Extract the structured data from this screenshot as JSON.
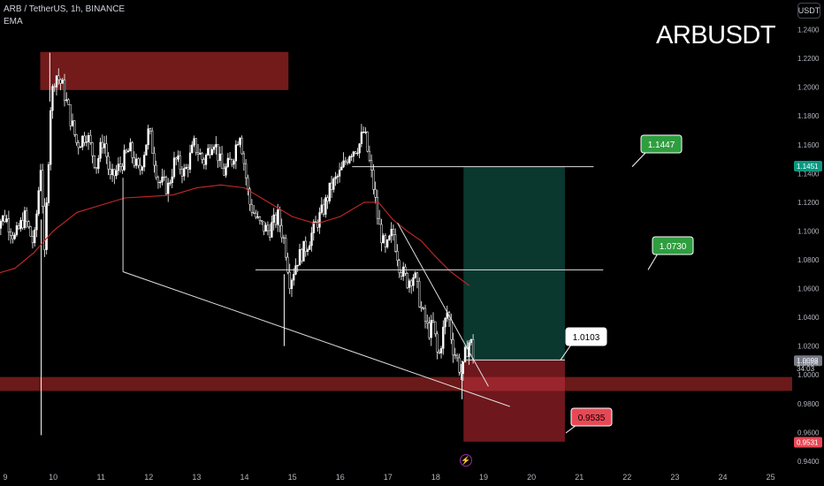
{
  "header": {
    "symbol_line": "ARB / TetherUS, 1h, BINANCE",
    "indicator": "EMA"
  },
  "watermark": "ARBUSDT",
  "currency_button": "USDT",
  "replay_icon": "lightning-bolt-icon",
  "colors": {
    "background": "#000000",
    "candle": "#ffffff",
    "ema": "#c62828",
    "supply_zone": "#7f1d1d",
    "profit_zone": "#0b3d33",
    "loss_zone": "#7a1a1f",
    "tp_label": "#2e9e3f",
    "sl_label": "#e84855",
    "current_price_tag": "#089981",
    "last_price_tag": "#787b86"
  },
  "chart_data": {
    "type": "candlestick",
    "title": "ARBUSDT",
    "y_axis": {
      "ylim": [
        0.935,
        1.252
      ],
      "ticks": [
        "1.2400",
        "1.2200",
        "1.2000",
        "1.1800",
        "1.1600",
        "1.1400",
        "1.1200",
        "1.1000",
        "1.0800",
        "1.0600",
        "1.0400",
        "1.0200",
        "1.0000",
        "0.9800",
        "0.9600",
        "0.9400"
      ],
      "tick_values": [
        1.24,
        1.22,
        1.2,
        1.18,
        1.16,
        1.14,
        1.12,
        1.1,
        1.08,
        1.06,
        1.04,
        1.02,
        1.0,
        0.98,
        0.96,
        0.94
      ]
    },
    "x_axis": {
      "ticks": [
        "9",
        "10",
        "11",
        "12",
        "13",
        "14",
        "15",
        "16",
        "17",
        "18",
        "19",
        "20",
        "21",
        "22",
        "23",
        "24",
        "25"
      ],
      "tick_days": [
        9,
        10,
        11,
        12,
        13,
        14,
        15,
        16,
        17,
        18,
        19,
        20,
        21,
        22,
        23,
        24,
        25
      ]
    },
    "price_tags": [
      {
        "label": "1.1451",
        "value": 1.1451,
        "kind": "tp"
      },
      {
        "label": "1.0098",
        "value": 1.0098,
        "kind": "last"
      },
      {
        "label": "1.0084",
        "value": 1.0084,
        "kind": "plain"
      },
      {
        "label": "34:03",
        "value": 1.0044,
        "kind": "plain"
      },
      {
        "label": "0.9531",
        "value": 0.9531,
        "kind": "sl"
      }
    ],
    "annotations": [
      {
        "label": "1.1447",
        "value": 1.1447,
        "kind": "tp"
      },
      {
        "label": "1.0730",
        "value": 1.073,
        "kind": "tp"
      },
      {
        "label": "1.0103",
        "value": 1.0103,
        "kind": "entry"
      },
      {
        "label": "0.9535",
        "value": 0.9535,
        "kind": "sl"
      }
    ],
    "zones": [
      {
        "name": "supply-zone",
        "day_from": 9.73,
        "day_to": 14.92,
        "top": 1.2245,
        "bottom": 1.198
      },
      {
        "name": "demand-zone",
        "day_from": 8.8,
        "day_to": 25.5,
        "top": 0.9985,
        "bottom": 0.9888
      },
      {
        "name": "profit-zone",
        "day_from": 18.58,
        "day_to": 20.7,
        "top": 1.1447,
        "bottom": 1.0103
      },
      {
        "name": "loss-zone",
        "day_from": 18.58,
        "day_to": 20.7,
        "top": 1.0103,
        "bottom": 0.9535
      }
    ],
    "levels": [
      {
        "name": "tp1-line",
        "day_from": 16.25,
        "day_to": 21.3,
        "value": 1.1447
      },
      {
        "name": "tp2-line",
        "day_from": 14.23,
        "day_to": 21.5,
        "value": 1.073
      },
      {
        "name": "entry-line",
        "day_from": 18.58,
        "day_to": 20.7,
        "value": 1.0103
      }
    ],
    "trendlines": [
      {
        "name": "lower-wedge-line",
        "from": [
          11.46,
          1.0717
        ],
        "to": [
          19.55,
          0.978
        ]
      },
      {
        "name": "upper-wedge-line",
        "from": [
          17.2,
          1.1056
        ],
        "to": [
          19.1,
          0.992
        ]
      }
    ],
    "verticals": [
      {
        "name": "left-range-line",
        "day": 11.46,
        "top": 1.137,
        "bottom": 1.0717
      }
    ],
    "price_path": [
      [
        8.78,
        1.105
      ],
      [
        9.0,
        1.11
      ],
      [
        9.2,
        1.095
      ],
      [
        9.4,
        1.11
      ],
      [
        9.6,
        1.09
      ],
      [
        9.75,
        1.15
      ],
      [
        9.82,
        1.08
      ],
      [
        9.95,
        1.19
      ],
      [
        10.05,
        1.21
      ],
      [
        10.2,
        1.2
      ],
      [
        10.35,
        1.18
      ],
      [
        10.5,
        1.16
      ],
      [
        10.7,
        1.168
      ],
      [
        10.9,
        1.145
      ],
      [
        11.05,
        1.165
      ],
      [
        11.2,
        1.135
      ],
      [
        11.45,
        1.148
      ],
      [
        11.6,
        1.157
      ],
      [
        11.8,
        1.14
      ],
      [
        12.0,
        1.17
      ],
      [
        12.2,
        1.135
      ],
      [
        12.4,
        1.13
      ],
      [
        12.55,
        1.15
      ],
      [
        12.75,
        1.14
      ],
      [
        12.95,
        1.16
      ],
      [
        13.15,
        1.148
      ],
      [
        13.35,
        1.165
      ],
      [
        13.55,
        1.14
      ],
      [
        13.75,
        1.15
      ],
      [
        13.9,
        1.17
      ],
      [
        14.1,
        1.12
      ],
      [
        14.3,
        1.105
      ],
      [
        14.5,
        1.1
      ],
      [
        14.7,
        1.11
      ],
      [
        14.85,
        1.09
      ],
      [
        14.95,
        1.065
      ],
      [
        15.1,
        1.08
      ],
      [
        15.3,
        1.09
      ],
      [
        15.5,
        1.105
      ],
      [
        15.65,
        1.115
      ],
      [
        15.8,
        1.13
      ],
      [
        16.0,
        1.14
      ],
      [
        16.2,
        1.155
      ],
      [
        16.4,
        1.16
      ],
      [
        16.5,
        1.17
      ],
      [
        16.6,
        1.15
      ],
      [
        16.7,
        1.13
      ],
      [
        16.8,
        1.105
      ],
      [
        16.95,
        1.085
      ],
      [
        17.1,
        1.1
      ],
      [
        17.25,
        1.075
      ],
      [
        17.4,
        1.065
      ],
      [
        17.55,
        1.07
      ],
      [
        17.7,
        1.045
      ],
      [
        17.85,
        1.03
      ],
      [
        17.95,
        1.035
      ],
      [
        18.05,
        1.01
      ],
      [
        18.15,
        1.03
      ],
      [
        18.25,
        1.045
      ],
      [
        18.35,
        1.02
      ],
      [
        18.45,
        1.01
      ],
      [
        18.55,
        0.999
      ],
      [
        18.62,
        1.015
      ],
      [
        18.72,
        1.025
      ],
      [
        18.8,
        1.0098
      ]
    ],
    "ema_path": [
      [
        8.78,
        1.07
      ],
      [
        9.2,
        1.074
      ],
      [
        9.6,
        1.085
      ],
      [
        10.0,
        1.1
      ],
      [
        10.5,
        1.113
      ],
      [
        11.0,
        1.118
      ],
      [
        11.5,
        1.123
      ],
      [
        12.0,
        1.124
      ],
      [
        12.5,
        1.125
      ],
      [
        13.0,
        1.13
      ],
      [
        13.5,
        1.132
      ],
      [
        14.0,
        1.13
      ],
      [
        14.5,
        1.12
      ],
      [
        15.0,
        1.11
      ],
      [
        15.5,
        1.105
      ],
      [
        16.0,
        1.11
      ],
      [
        16.5,
        1.12
      ],
      [
        16.8,
        1.12
      ],
      [
        17.1,
        1.108
      ],
      [
        17.4,
        1.1
      ],
      [
        17.7,
        1.093
      ],
      [
        18.0,
        1.082
      ],
      [
        18.3,
        1.072
      ],
      [
        18.7,
        1.062
      ]
    ]
  }
}
